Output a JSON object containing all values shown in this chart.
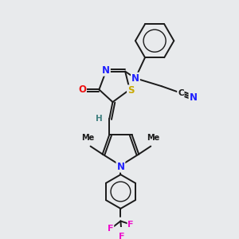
{
  "background_color": "#e8eaec",
  "bond_color": "#1a1a1a",
  "bond_width": 1.4,
  "colors": {
    "C": "#1a1a1a",
    "N": "#2020ff",
    "O": "#ee1010",
    "S": "#c8a800",
    "F": "#ee10cc",
    "H": "#408080"
  },
  "figsize": [
    3.0,
    3.0
  ],
  "dpi": 100
}
